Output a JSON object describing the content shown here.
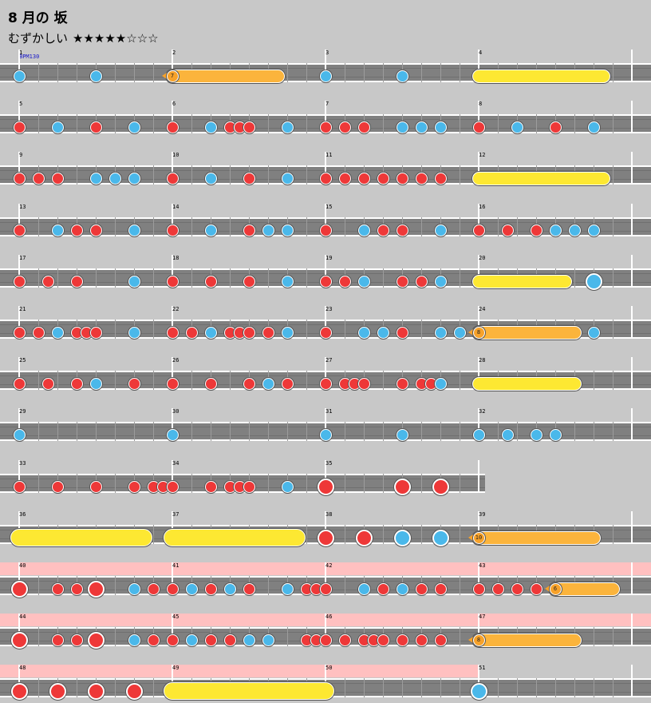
{
  "song": {
    "title": "8 月の 坂",
    "difficulty_label": "むずかしい",
    "stars": "★★★★★☆☆☆",
    "bpm": "BPM130"
  },
  "colors": {
    "background": "#c8c8c8",
    "lane": "#808080",
    "don": "#ee3838",
    "ka": "#4ab8ea",
    "roll_yellow": "#fde832",
    "balloon_orange": "#fbb43c",
    "gogo_highlight": "#ffc0c0"
  },
  "rows": [
    {
      "measures": [
        1,
        2,
        3,
        4
      ],
      "notes": [
        {
          "k": "ka",
          "b": 0
        },
        {
          "k": "ka",
          "b": 4
        },
        {
          "k": "balloon",
          "b": 8,
          "e": 13.5,
          "count": "7"
        },
        {
          "k": "ka",
          "b": 16
        },
        {
          "k": "ka",
          "b": 20
        },
        {
          "k": "roll",
          "b": 24,
          "e": 30.5
        }
      ]
    },
    {
      "measures": [
        5,
        6,
        7,
        8
      ],
      "notes": [
        {
          "k": "don",
          "b": 0
        },
        {
          "k": "ka",
          "b": 2
        },
        {
          "k": "don",
          "b": 4
        },
        {
          "k": "ka",
          "b": 6
        },
        {
          "k": "don",
          "b": 8
        },
        {
          "k": "ka",
          "b": 10
        },
        {
          "k": "don",
          "b": 11
        },
        {
          "k": "don",
          "b": 11.5
        },
        {
          "k": "don",
          "b": 12
        },
        {
          "k": "ka",
          "b": 14
        },
        {
          "k": "don",
          "b": 16
        },
        {
          "k": "don",
          "b": 17
        },
        {
          "k": "don",
          "b": 18
        },
        {
          "k": "ka",
          "b": 20
        },
        {
          "k": "ka",
          "b": 21
        },
        {
          "k": "ka",
          "b": 22
        },
        {
          "k": "don",
          "b": 24
        },
        {
          "k": "ka",
          "b": 26
        },
        {
          "k": "don",
          "b": 28
        },
        {
          "k": "ka",
          "b": 30
        }
      ]
    },
    {
      "measures": [
        9,
        10,
        11,
        12
      ],
      "notes": [
        {
          "k": "don",
          "b": 0
        },
        {
          "k": "don",
          "b": 1
        },
        {
          "k": "don",
          "b": 2
        },
        {
          "k": "ka",
          "b": 4
        },
        {
          "k": "ka",
          "b": 5
        },
        {
          "k": "ka",
          "b": 6
        },
        {
          "k": "don",
          "b": 8
        },
        {
          "k": "ka",
          "b": 10
        },
        {
          "k": "don",
          "b": 12
        },
        {
          "k": "ka",
          "b": 14
        },
        {
          "k": "don",
          "b": 16
        },
        {
          "k": "don",
          "b": 17
        },
        {
          "k": "don",
          "b": 18
        },
        {
          "k": "don",
          "b": 19
        },
        {
          "k": "don",
          "b": 20
        },
        {
          "k": "don",
          "b": 21
        },
        {
          "k": "don",
          "b": 22
        },
        {
          "k": "roll",
          "b": 24,
          "e": 30.5
        }
      ]
    },
    {
      "measures": [
        13,
        14,
        15,
        16
      ],
      "notes": [
        {
          "k": "don",
          "b": 0
        },
        {
          "k": "ka",
          "b": 2
        },
        {
          "k": "don",
          "b": 3
        },
        {
          "k": "don",
          "b": 4
        },
        {
          "k": "ka",
          "b": 6
        },
        {
          "k": "don",
          "b": 8
        },
        {
          "k": "ka",
          "b": 10
        },
        {
          "k": "don",
          "b": 12
        },
        {
          "k": "ka",
          "b": 13
        },
        {
          "k": "ka",
          "b": 14
        },
        {
          "k": "don",
          "b": 16
        },
        {
          "k": "ka",
          "b": 18
        },
        {
          "k": "don",
          "b": 19
        },
        {
          "k": "don",
          "b": 20
        },
        {
          "k": "ka",
          "b": 22
        },
        {
          "k": "don",
          "b": 24
        },
        {
          "k": "don",
          "b": 25.5
        },
        {
          "k": "don",
          "b": 27
        },
        {
          "k": "ka",
          "b": 28
        },
        {
          "k": "ka",
          "b": 29
        },
        {
          "k": "ka",
          "b": 30
        }
      ]
    },
    {
      "measures": [
        17,
        18,
        19,
        20
      ],
      "notes": [
        {
          "k": "don",
          "b": 0
        },
        {
          "k": "don",
          "b": 1.5
        },
        {
          "k": "don",
          "b": 3
        },
        {
          "k": "ka",
          "b": 6
        },
        {
          "k": "don",
          "b": 8
        },
        {
          "k": "don",
          "b": 10
        },
        {
          "k": "don",
          "b": 12
        },
        {
          "k": "ka",
          "b": 14
        },
        {
          "k": "don",
          "b": 16
        },
        {
          "k": "don",
          "b": 17
        },
        {
          "k": "ka",
          "b": 18
        },
        {
          "k": "don",
          "b": 20
        },
        {
          "k": "don",
          "b": 21
        },
        {
          "k": "ka",
          "b": 22
        },
        {
          "k": "roll",
          "b": 24,
          "e": 28.5
        },
        {
          "k": "KA",
          "b": 30
        }
      ]
    },
    {
      "measures": [
        21,
        22,
        23,
        24
      ],
      "notes": [
        {
          "k": "don",
          "b": 0
        },
        {
          "k": "don",
          "b": 1
        },
        {
          "k": "ka",
          "b": 2
        },
        {
          "k": "don",
          "b": 3
        },
        {
          "k": "don",
          "b": 3.5
        },
        {
          "k": "don",
          "b": 4
        },
        {
          "k": "ka",
          "b": 6
        },
        {
          "k": "don",
          "b": 8
        },
        {
          "k": "don",
          "b": 9
        },
        {
          "k": "ka",
          "b": 10
        },
        {
          "k": "don",
          "b": 11
        },
        {
          "k": "don",
          "b": 11.5
        },
        {
          "k": "don",
          "b": 12
        },
        {
          "k": "don",
          "b": 13
        },
        {
          "k": "ka",
          "b": 14
        },
        {
          "k": "don",
          "b": 16
        },
        {
          "k": "ka",
          "b": 18
        },
        {
          "k": "ka",
          "b": 19
        },
        {
          "k": "don",
          "b": 20
        },
        {
          "k": "ka",
          "b": 22
        },
        {
          "k": "ka",
          "b": 23
        },
        {
          "k": "balloon",
          "b": 24,
          "e": 29,
          "count": "8"
        },
        {
          "k": "ka",
          "b": 30
        }
      ]
    },
    {
      "measures": [
        25,
        26,
        27,
        28
      ],
      "notes": [
        {
          "k": "don",
          "b": 0
        },
        {
          "k": "don",
          "b": 1.5
        },
        {
          "k": "don",
          "b": 3
        },
        {
          "k": "ka",
          "b": 4
        },
        {
          "k": "don",
          "b": 6
        },
        {
          "k": "don",
          "b": 8
        },
        {
          "k": "don",
          "b": 10
        },
        {
          "k": "don",
          "b": 12
        },
        {
          "k": "ka",
          "b": 13
        },
        {
          "k": "don",
          "b": 14
        },
        {
          "k": "don",
          "b": 16
        },
        {
          "k": "don",
          "b": 17
        },
        {
          "k": "don",
          "b": 17.5
        },
        {
          "k": "don",
          "b": 18
        },
        {
          "k": "don",
          "b": 20
        },
        {
          "k": "don",
          "b": 21
        },
        {
          "k": "don",
          "b": 21.5
        },
        {
          "k": "ka",
          "b": 22
        },
        {
          "k": "roll",
          "b": 24,
          "e": 29
        }
      ]
    },
    {
      "measures": [
        29,
        30,
        31,
        32
      ],
      "notes": [
        {
          "k": "ka",
          "b": 0
        },
        {
          "k": "ka",
          "b": 8
        },
        {
          "k": "ka",
          "b": 16
        },
        {
          "k": "ka",
          "b": 20
        },
        {
          "k": "ka",
          "b": 24
        },
        {
          "k": "ka",
          "b": 25.5
        },
        {
          "k": "ka",
          "b": 27
        },
        {
          "k": "ka",
          "b": 28
        }
      ]
    },
    {
      "measures": [
        33,
        34,
        35
      ],
      "notes": [
        {
          "k": "don",
          "b": 0
        },
        {
          "k": "don",
          "b": 2
        },
        {
          "k": "don",
          "b": 4
        },
        {
          "k": "don",
          "b": 6
        },
        {
          "k": "don",
          "b": 7
        },
        {
          "k": "don",
          "b": 7.5
        },
        {
          "k": "don",
          "b": 8
        },
        {
          "k": "don",
          "b": 10
        },
        {
          "k": "don",
          "b": 11
        },
        {
          "k": "don",
          "b": 11.5
        },
        {
          "k": "don",
          "b": 12
        },
        {
          "k": "ka",
          "b": 14
        },
        {
          "k": "DON",
          "b": 16
        },
        {
          "k": "DON",
          "b": 20
        },
        {
          "k": "DON",
          "b": 22
        }
      ]
    },
    {
      "measures": [
        36,
        37,
        38,
        39
      ],
      "notes": [
        {
          "k": "rollbig",
          "b": 0,
          "e": 6.5
        },
        {
          "k": "rollbig",
          "b": 8,
          "e": 14.5
        },
        {
          "k": "DON",
          "b": 16
        },
        {
          "k": "DON",
          "b": 18
        },
        {
          "k": "KA",
          "b": 20
        },
        {
          "k": "KA",
          "b": 22
        },
        {
          "k": "balloon",
          "b": 24,
          "e": 30,
          "count": "10"
        }
      ]
    },
    {
      "measures": [
        40,
        41,
        42,
        43
      ],
      "gogo": [
        0,
        32
      ],
      "notes": [
        {
          "k": "DON",
          "b": 0
        },
        {
          "k": "don",
          "b": 2
        },
        {
          "k": "don",
          "b": 3
        },
        {
          "k": "DON",
          "b": 4
        },
        {
          "k": "ka",
          "b": 6
        },
        {
          "k": "don",
          "b": 7
        },
        {
          "k": "don",
          "b": 8
        },
        {
          "k": "ka",
          "b": 9
        },
        {
          "k": "don",
          "b": 10
        },
        {
          "k": "ka",
          "b": 11
        },
        {
          "k": "don",
          "b": 12
        },
        {
          "k": "ka",
          "b": 14
        },
        {
          "k": "don",
          "b": 15
        },
        {
          "k": "don",
          "b": 15.5
        },
        {
          "k": "don",
          "b": 16
        },
        {
          "k": "ka",
          "b": 18
        },
        {
          "k": "don",
          "b": 19
        },
        {
          "k": "ka",
          "b": 20
        },
        {
          "k": "don",
          "b": 21
        },
        {
          "k": "don",
          "b": 22
        },
        {
          "k": "don",
          "b": 24
        },
        {
          "k": "don",
          "b": 25
        },
        {
          "k": "don",
          "b": 26
        },
        {
          "k": "don",
          "b": 27
        },
        {
          "k": "balloon",
          "b": 28,
          "e": 31,
          "count": "6"
        }
      ]
    },
    {
      "measures": [
        44,
        45,
        46,
        47
      ],
      "gogo": [
        0,
        32
      ],
      "notes": [
        {
          "k": "DON",
          "b": 0
        },
        {
          "k": "don",
          "b": 2
        },
        {
          "k": "don",
          "b": 3
        },
        {
          "k": "DON",
          "b": 4
        },
        {
          "k": "ka",
          "b": 6
        },
        {
          "k": "don",
          "b": 7
        },
        {
          "k": "don",
          "b": 8
        },
        {
          "k": "ka",
          "b": 9
        },
        {
          "k": "don",
          "b": 10
        },
        {
          "k": "don",
          "b": 11
        },
        {
          "k": "ka",
          "b": 12
        },
        {
          "k": "ka",
          "b": 13
        },
        {
          "k": "don",
          "b": 15
        },
        {
          "k": "don",
          "b": 15.5
        },
        {
          "k": "don",
          "b": 16
        },
        {
          "k": "don",
          "b": 17
        },
        {
          "k": "don",
          "b": 18
        },
        {
          "k": "don",
          "b": 18.5
        },
        {
          "k": "don",
          "b": 19
        },
        {
          "k": "don",
          "b": 20
        },
        {
          "k": "don",
          "b": 21
        },
        {
          "k": "don",
          "b": 22
        },
        {
          "k": "balloon",
          "b": 24,
          "e": 29,
          "count": "8"
        }
      ]
    },
    {
      "measures": [
        48,
        49,
        50,
        51
      ],
      "gogo": [
        0,
        24
      ],
      "notes": [
        {
          "k": "DON",
          "b": 0
        },
        {
          "k": "DON",
          "b": 2
        },
        {
          "k": "DON",
          "b": 4
        },
        {
          "k": "DON",
          "b": 6
        },
        {
          "k": "rollbig",
          "b": 8,
          "e": 16
        },
        {
          "k": "KA",
          "b": 24
        }
      ]
    }
  ]
}
